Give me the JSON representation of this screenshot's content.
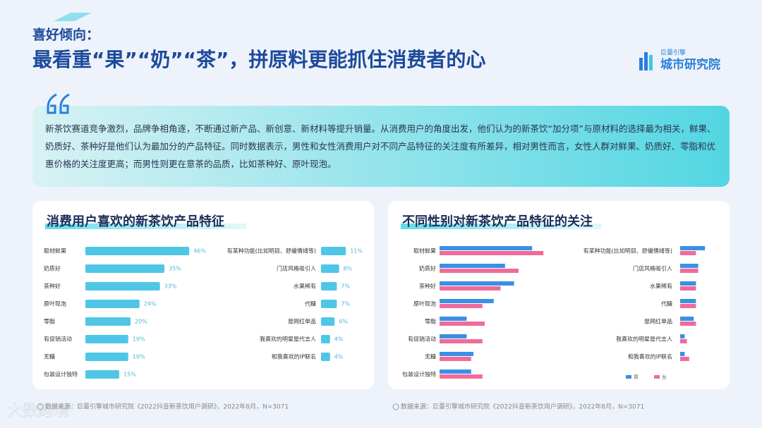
{
  "header": {
    "kicker": "喜好倾向：",
    "title": "最看重“果”“奶”“茶”，拼原料更能抓住消费者的心",
    "logo_top": "巨量引擎",
    "logo_bottom": "城市研究院"
  },
  "quote": "新茶饮赛道竞争激烈，品牌争相角逐，不断通过新产品、新创意、新材料等提升销量。从消费用户的角度出发，他们认为的新茶饮“加分项”与原材料的选择最为相关，鲜果、奶质好、茶种好是他们认为最加分的产品特征。同时数据表示，男性和女性消费用户对不同产品特征的关注度有所差异，相对男性而言，女性人群对鲜果、奶质好、零脂和优惠价格的关注度更高；而男性则更在意茶的品质，比如茶种好、原叶现泡。",
  "watermark": "大数跨境",
  "chart_data": [
    {
      "type": "bar",
      "title": "消费用户喜欢的新茶饮产品特征",
      "categories": [
        "取材鲜果",
        "奶质好",
        "茶种好",
        "原叶现泡",
        "零脂",
        "有促销活动",
        "无糖",
        "包装设计独特",
        "有某种功能(比如明目、舒缓情绪等)",
        "门店风格吸引人",
        "水果稀有",
        "代糖",
        "是网红单品",
        "我喜欢的明星是代言人",
        "和我喜欢的IP联名"
      ],
      "values": [
        46,
        35,
        33,
        24,
        20,
        19,
        19,
        15,
        11,
        8,
        7,
        7,
        6,
        4,
        4
      ],
      "value_labels": [
        "46%",
        "35%",
        "33%",
        "24%",
        "20%",
        "19%",
        "19%",
        "15%",
        "11%",
        "8%",
        "7%",
        "7%",
        "6%",
        "4%",
        "4%"
      ],
      "color": "#4fc6e6",
      "source": "数据来源：巨量引擎城市研究院《2022抖音新茶饮用户调研》，2022年8月，N=3071"
    },
    {
      "type": "bar",
      "title": "不同性别对新茶饮产品特征的关注",
      "categories": [
        "取材鲜果",
        "奶质好",
        "茶种好",
        "原叶现泡",
        "零脂",
        "有促销活动",
        "无糖",
        "包装设计独特",
        "有某种功能(比如明目、舒缓情绪等)",
        "门店风格吸引人",
        "水果稀有",
        "代糖",
        "是网红单品",
        "我喜欢的明星是代言人",
        "和我喜欢的IP联名"
      ],
      "series": [
        {
          "name": "男",
          "color": "#3b8fe4",
          "values": [
            41,
            29,
            33,
            24,
            12,
            12,
            15,
            14,
            11,
            8,
            7,
            7,
            6,
            2,
            2
          ]
        },
        {
          "name": "女",
          "color": "#ef6b9b",
          "values": [
            46,
            35,
            27,
            19,
            20,
            19,
            14,
            19,
            7,
            8,
            7,
            7,
            7,
            3,
            4
          ]
        }
      ],
      "source": "数据来源：巨量引擎城市研究院《2022抖音新茶饮用户调研》，2022年8月，N=3071"
    }
  ]
}
